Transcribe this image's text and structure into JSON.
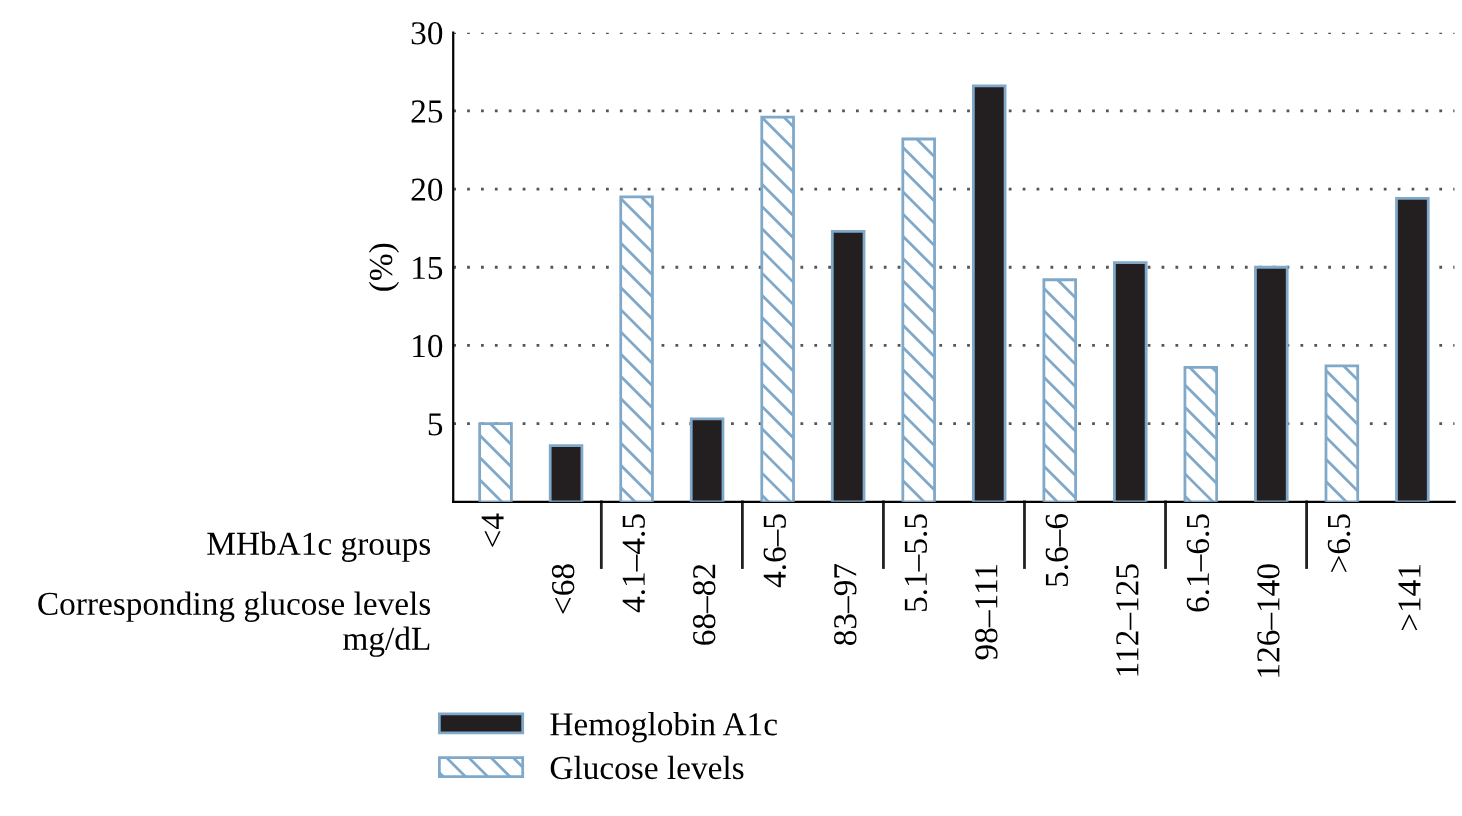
{
  "chart_data": {
    "type": "bar",
    "ylabel": "(%)",
    "categories": [
      "<4",
      "<68",
      "4.1–4.5",
      "68–82",
      "4.6–5",
      "83–97",
      "5.1–5.5",
      "98–111",
      "5.6–6",
      "112–125",
      "6.1–6.5",
      "126–140",
      ">6.5",
      ">141"
    ],
    "series": [
      {
        "name": "Hemoglobin A1c",
        "color": "#231f20",
        "values": [
          null,
          3.6,
          null,
          5.3,
          null,
          17.3,
          null,
          26.6,
          null,
          15.3,
          null,
          15.0,
          null,
          19.4
        ]
      },
      {
        "name": "Glucose levels",
        "color": "#7fa8c9",
        "values": [
          5.0,
          null,
          19.5,
          null,
          24.6,
          null,
          23.2,
          null,
          14.2,
          null,
          8.6,
          null,
          8.7,
          null
        ]
      }
    ],
    "ylim": [
      0,
      30
    ],
    "yticks": [
      5,
      10,
      15,
      20,
      25,
      30
    ],
    "grid": "y",
    "legend": "bottom",
    "annotations": [
      "MHbA1c groups",
      "Corresponding glucose levels mg/dL"
    ]
  }
}
